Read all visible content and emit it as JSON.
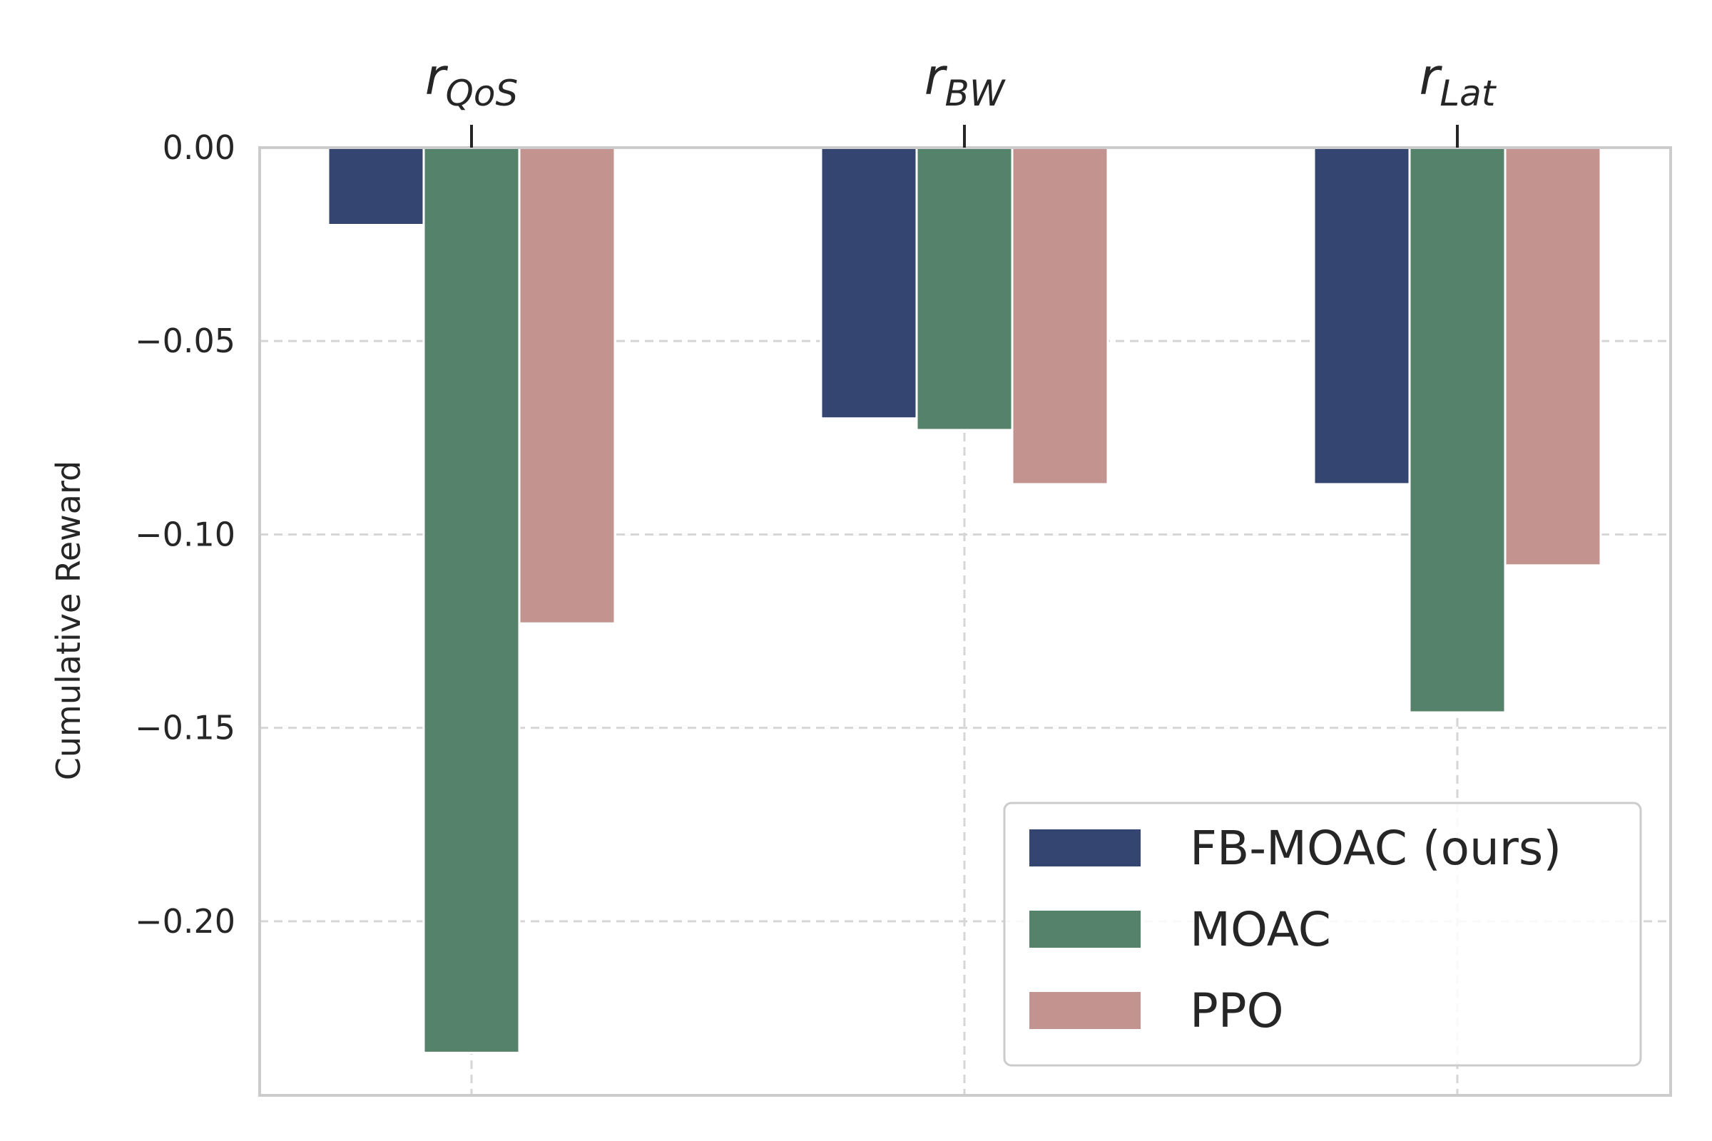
{
  "chart_data": {
    "type": "bar",
    "title": "",
    "xlabel": "",
    "ylabel": "Cumulative Reward",
    "ylim": [
      -0.245,
      0.0
    ],
    "yticks": [
      0.0,
      -0.05,
      -0.1,
      -0.15,
      -0.2
    ],
    "ytick_labels": [
      "0.00",
      "−0.05",
      "−0.10",
      "−0.15",
      "−0.20"
    ],
    "categories": [
      {
        "base": "r",
        "sub": "QoS"
      },
      {
        "base": "r",
        "sub": "BW"
      },
      {
        "base": "r",
        "sub": "Lat"
      }
    ],
    "x_axis_position": "top",
    "grid": true,
    "grid_style": "dashed",
    "legend_position": "lower right",
    "series": [
      {
        "name": "FB-MOAC (ours)",
        "color": "#354571",
        "values": [
          -0.02,
          -0.07,
          -0.087
        ]
      },
      {
        "name": "MOAC",
        "color": "#55826B",
        "values": [
          -0.234,
          -0.073,
          -0.146
        ]
      },
      {
        "name": "PPO",
        "color": "#C3948F",
        "values": [
          -0.123,
          -0.087,
          -0.108
        ]
      }
    ]
  }
}
